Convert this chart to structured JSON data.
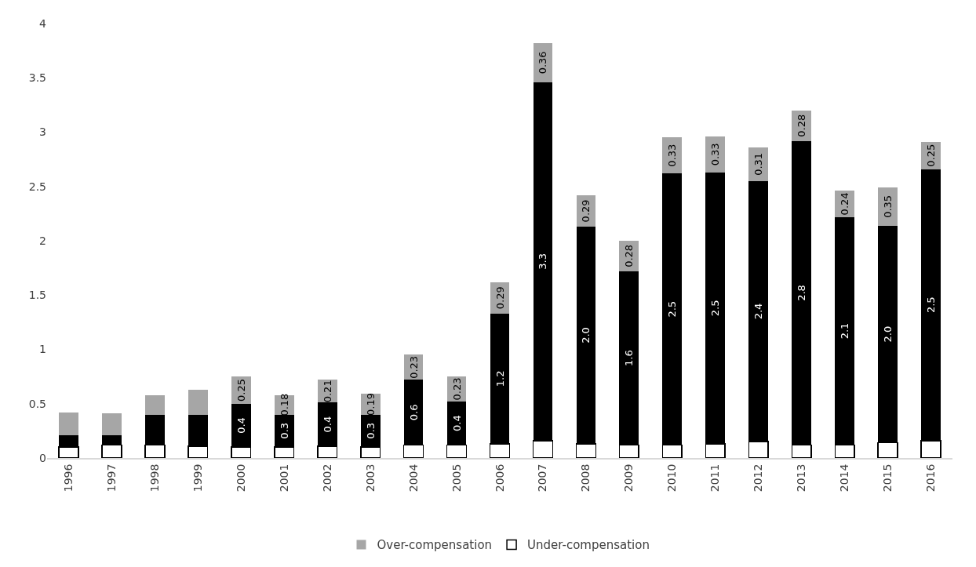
{
  "chart_data": {
    "type": "bar",
    "stacked": true,
    "categories": [
      "1996",
      "1997",
      "1998",
      "1999",
      "2000",
      "2001",
      "2002",
      "2003",
      "2004",
      "2005",
      "2006",
      "2007",
      "2008",
      "2009",
      "2010",
      "2011",
      "2012",
      "2013",
      "2014",
      "2015",
      "2016"
    ],
    "series": [
      {
        "name": "Under-compensation",
        "color": "#ffffff",
        "values": [
          0.1,
          0.12,
          0.12,
          0.11,
          0.1,
          0.1,
          0.11,
          0.1,
          0.12,
          0.12,
          0.13,
          0.16,
          0.13,
          0.12,
          0.12,
          0.13,
          0.15,
          0.12,
          0.12,
          0.14,
          0.16
        ]
      },
      {
        "color": "#000000",
        "values": [
          0.11,
          0.09,
          0.28,
          0.29,
          0.4,
          0.3,
          0.4,
          0.3,
          0.6,
          0.4,
          1.2,
          3.3,
          2.0,
          1.6,
          2.5,
          2.5,
          2.4,
          2.8,
          2.1,
          2.0,
          2.5
        ],
        "value_labels": [
          null,
          null,
          null,
          null,
          "0.4",
          "0.3",
          "0.4",
          "0.3",
          "0.6",
          "0.4",
          "1.2",
          "3.3",
          "2.0",
          "1.6",
          "2.5",
          "2.5",
          "2.4",
          "2.8",
          "2.1",
          "2.0",
          "2.5"
        ]
      },
      {
        "name": "Over-compensation",
        "color": "#a6a6a6",
        "values": [
          0.21,
          0.2,
          0.18,
          0.23,
          0.25,
          0.18,
          0.21,
          0.19,
          0.23,
          0.23,
          0.29,
          0.36,
          0.29,
          0.28,
          0.33,
          0.33,
          0.31,
          0.28,
          0.24,
          0.35,
          0.25
        ],
        "value_labels": [
          null,
          null,
          null,
          null,
          "0.25",
          "0.18",
          "0.21",
          "0.19",
          "0.23",
          "0.23",
          "0.29",
          "0.36",
          "0.29",
          "0.28",
          "0.33",
          "0.33",
          "0.31",
          "0.28",
          "0.24",
          "0.35",
          "0.25"
        ]
      }
    ],
    "ylim": [
      0,
      4
    ],
    "yticks": [
      0,
      0.5,
      1,
      1.5,
      2,
      2.5,
      3,
      3.5,
      4
    ],
    "grid": false,
    "legend": "bottom"
  }
}
